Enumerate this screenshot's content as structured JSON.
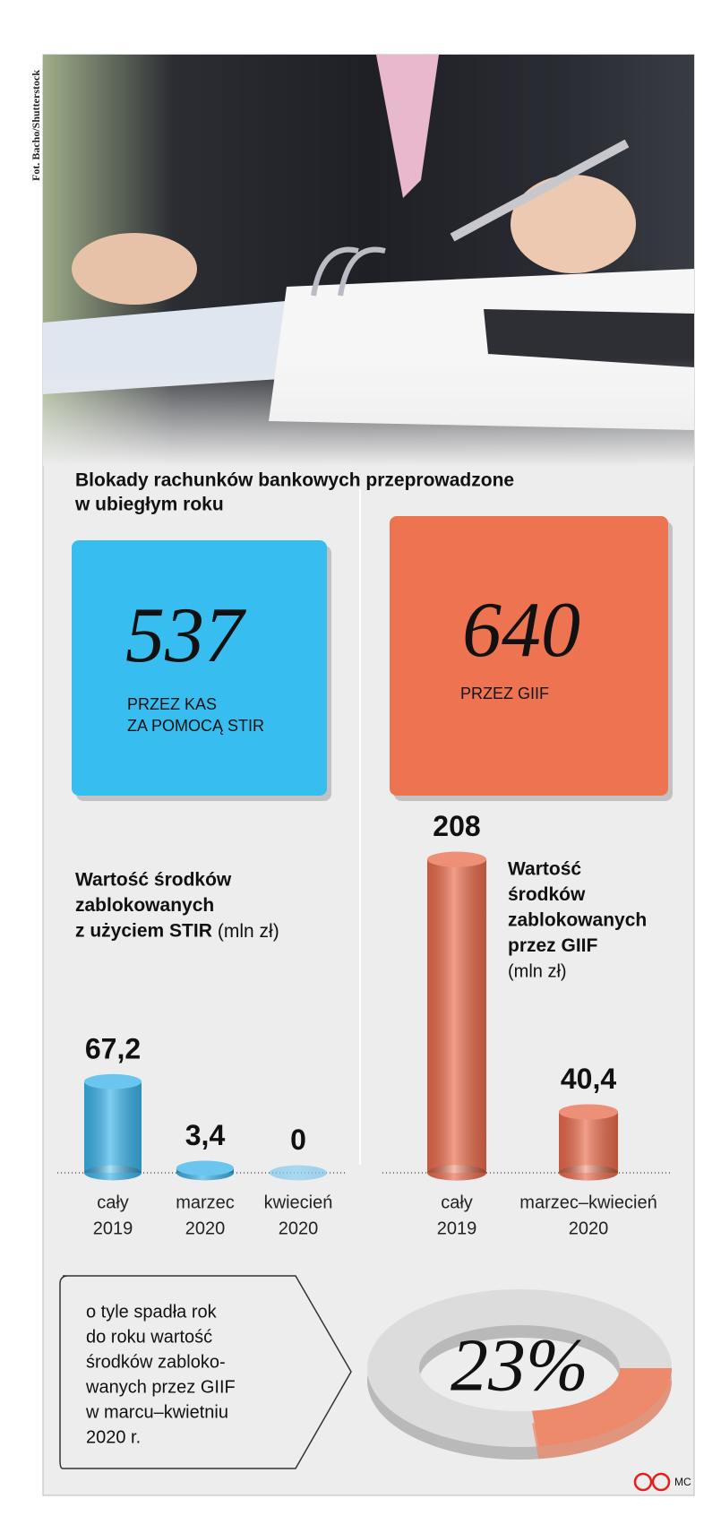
{
  "credit": "Fot. Bacho/Shutterstock",
  "headline": [
    "Blokady rachunków bankowych przeprowadzone",
    "w ubiegłym roku"
  ],
  "stats": [
    {
      "value": 537,
      "label": [
        "PRZEZ KAS",
        "ZA POMOCĄ STIR"
      ],
      "color": "#38bdf0"
    },
    {
      "value": 640,
      "label": [
        "PRZEZ GIIF"
      ],
      "color": "#ee7350"
    }
  ],
  "chart_data": [
    {
      "type": "bar",
      "title": [
        "Wartość środków",
        "zablokowanych",
        "z użyciem STIR"
      ],
      "unit": "(mln zł)",
      "categories": [
        [
          "cały",
          "2019"
        ],
        [
          "marzec",
          "2020"
        ],
        [
          "kwiecień",
          "2020"
        ]
      ],
      "values": [
        67.2,
        3.4,
        0
      ],
      "value_labels": [
        "67,2",
        "3,4",
        "0"
      ],
      "color": "#3ab3ea",
      "ylim": [
        0,
        70
      ]
    },
    {
      "type": "bar",
      "title": [
        "Wartość",
        "środków",
        "zablokowanych",
        "przez GIIF"
      ],
      "unit": "(mln zł)",
      "categories": [
        [
          "cały",
          "2019"
        ],
        [
          "marzec–kwiecień",
          "2020"
        ]
      ],
      "values": [
        208,
        40.4
      ],
      "value_labels": [
        "208",
        "40,4"
      ],
      "color": "#e96a4b",
      "ylim": [
        0,
        220
      ]
    },
    {
      "type": "pie",
      "values": [
        23
      ],
      "value_labels": [
        "23%"
      ],
      "color": "#ee8a6c",
      "caption": [
        "o tyle spadła rok",
        "do roku wartość",
        "środków zabloko-",
        "wanych przez GIIF",
        "w marcu–kwietniu",
        "2020 r."
      ]
    }
  ],
  "logo": "MC"
}
